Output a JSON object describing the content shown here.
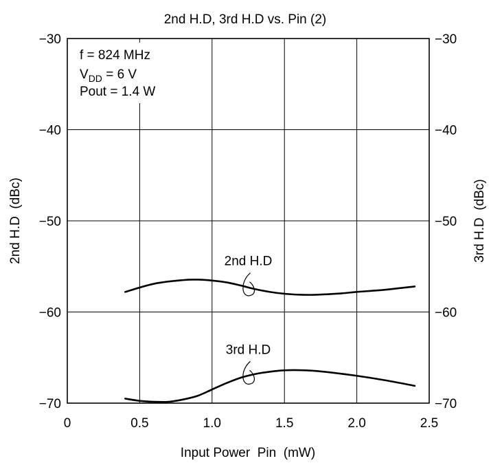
{
  "chart_data": {
    "type": "line",
    "title": "2nd H.D, 3rd H.D vs. Pin (2)",
    "xlabel": "Input Power  Pin  (mW)",
    "ylabel_left": "2nd H.D  (dBc)",
    "ylabel_right": "3rd H.D  (dBc)",
    "xlim": [
      0,
      2.5
    ],
    "ylim": [
      -70,
      -30
    ],
    "x_ticks": [
      "0",
      "0.5",
      "1.0",
      "1.5",
      "2.0",
      "2.5"
    ],
    "y_ticks_left": [
      "−30",
      "−40",
      "−50",
      "−60",
      "−70"
    ],
    "y_ticks_right": [
      "−30",
      "−40",
      "−50",
      "−60",
      "−70"
    ],
    "grid": true,
    "conditions": {
      "freq": "f = 824 MHz",
      "vdd_prefix": "V",
      "vdd_sub": "DD",
      "vdd_suffix": " = 6 V",
      "pout": "Pout = 1.4 W"
    },
    "series": [
      {
        "name": "2nd H.D",
        "x": [
          0.4,
          0.6,
          0.8,
          0.9,
          1.0,
          1.1,
          1.2,
          1.3,
          1.4,
          1.5,
          1.6,
          1.7,
          1.8,
          1.9,
          2.0,
          2.2,
          2.4
        ],
        "y": [
          -57.8,
          -56.9,
          -56.5,
          -56.45,
          -56.55,
          -56.75,
          -57.1,
          -57.5,
          -57.8,
          -58.0,
          -58.1,
          -58.12,
          -58.05,
          -57.95,
          -57.8,
          -57.55,
          -57.2
        ]
      },
      {
        "name": "3rd H.D",
        "x": [
          0.4,
          0.5,
          0.6,
          0.7,
          0.8,
          0.9,
          1.0,
          1.1,
          1.2,
          1.3,
          1.4,
          1.5,
          1.6,
          1.7,
          1.8,
          2.0,
          2.2,
          2.4
        ],
        "y": [
          -69.5,
          -69.75,
          -69.85,
          -69.85,
          -69.6,
          -69.2,
          -68.5,
          -67.8,
          -67.2,
          -66.8,
          -66.55,
          -66.4,
          -66.38,
          -66.45,
          -66.6,
          -67.0,
          -67.5,
          -68.1
        ]
      }
    ],
    "annotations": [
      {
        "text": "2nd H.D",
        "series": "2nd H.D",
        "x": 1.25
      },
      {
        "text": "3rd H.D",
        "series": "3rd H.D",
        "x": 1.25
      }
    ]
  }
}
